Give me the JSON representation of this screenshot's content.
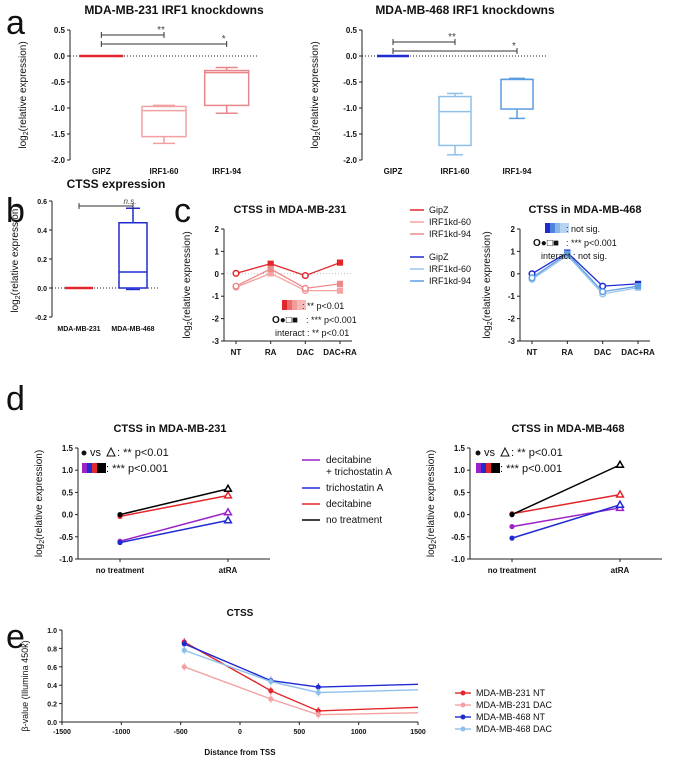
{
  "panel_letters": {
    "a": "a",
    "b": "b",
    "c": "c",
    "d": "d",
    "e": "e"
  },
  "chart_data": [
    {
      "id": "a1",
      "type": "box",
      "title": "MDA-MB-231 IRF1 knockdowns",
      "ylabel": "log2(relative expression)",
      "ylim": [
        -2.0,
        0.5
      ],
      "yticks": [
        "0.5",
        "0.0",
        "-0.5",
        "-1.0",
        "-1.5",
        "-2.0"
      ],
      "categories": [
        "GIPZ",
        "IRF1-60",
        "IRF1-94"
      ],
      "colors": [
        "#e3262b",
        "#f0a0a0",
        "#e9868a"
      ],
      "boxes": [
        {
          "min": 0,
          "q1": 0,
          "median": 0,
          "q3": 0,
          "max": 0
        },
        {
          "min": -1.68,
          "q1": -1.55,
          "median": -1.05,
          "q3": -0.97,
          "max": -0.95
        },
        {
          "min": -1.1,
          "q1": -0.95,
          "median": -0.32,
          "q3": -0.28,
          "max": -0.22
        }
      ],
      "significance": [
        {
          "from": 0,
          "to": 1,
          "label": "**"
        },
        {
          "from": 0,
          "to": 2,
          "label": "*"
        }
      ]
    },
    {
      "id": "a2",
      "type": "box",
      "title": "MDA-MB-468 IRF1 knockdowns",
      "ylabel": "log2(relative expression)",
      "ylim": [
        -2.0,
        0.5
      ],
      "yticks": [
        "0.5",
        "0.0",
        "-0.5",
        "-1.0",
        "-1.5",
        "-2.0"
      ],
      "categories": [
        "GIPZ",
        "IRF1-60",
        "IRF1-94"
      ],
      "colors": [
        "#1f2bd1",
        "#8ec0ea",
        "#5a9ee0"
      ],
      "boxes": [
        {
          "min": 0,
          "q1": 0,
          "median": 0,
          "q3": 0,
          "max": 0
        },
        {
          "min": -1.9,
          "q1": -1.72,
          "median": -1.07,
          "q3": -0.78,
          "max": -0.72
        },
        {
          "min": -1.2,
          "q1": -1.02,
          "median": -0.45,
          "q3": -0.45,
          "max": -0.43
        }
      ],
      "significance": [
        {
          "from": 0,
          "to": 1,
          "label": "**"
        },
        {
          "from": 0,
          "to": 2,
          "label": "*"
        }
      ]
    },
    {
      "id": "b",
      "type": "box",
      "title": "CTSS expression",
      "ylabel": "log2(relative expression)",
      "ylim": [
        -0.2,
        0.6
      ],
      "yticks": [
        "0.6",
        "0.4",
        "0.2",
        "0.0",
        "-0.2"
      ],
      "categories": [
        "MDA-MB-231",
        "MDA-MB-468"
      ],
      "colors": [
        "#e3262b",
        "#1f2bd1"
      ],
      "boxes": [
        {
          "min": 0,
          "q1": 0,
          "median": 0,
          "q3": 0,
          "max": 0
        },
        {
          "min": -0.01,
          "q1": 0.0,
          "median": 0.11,
          "q3": 0.45,
          "max": 0.55
        }
      ],
      "significance": [
        {
          "from": 0,
          "to": 1,
          "label": "n.s."
        }
      ]
    },
    {
      "id": "c1",
      "type": "line",
      "title": "CTSS in MDA-MB-231",
      "ylabel": "log2(relative expression)",
      "ylim": [
        -3,
        2
      ],
      "yticks": [
        "2",
        "1",
        "0",
        "-1",
        "-2",
        "-3"
      ],
      "categories": [
        "NT",
        "RA",
        "DAC",
        "DAC+RA"
      ],
      "series": [
        {
          "name": "GipZ",
          "color": "#e3262b",
          "values": [
            0.02,
            0.45,
            -0.08,
            0.5
          ]
        },
        {
          "name": "IRF1kd-60",
          "color": "#f5a3a3",
          "values": [
            -0.6,
            0.02,
            -0.75,
            -0.75
          ]
        },
        {
          "name": "IRF1kd-94",
          "color": "#ec8a8a",
          "values": [
            -0.55,
            0.22,
            -0.65,
            -0.45
          ]
        }
      ],
      "stats": {
        "line1": ": ** p<0.01",
        "line2": ": *** p<0.001",
        "line3": "interact : ** p<0.01",
        "glyphs": "O●□■"
      }
    },
    {
      "id": "c2",
      "type": "line",
      "title": "CTSS in MDA-MB-468",
      "ylabel": "log2(relative expression)",
      "ylim": [
        -3,
        2
      ],
      "yticks": [
        "2",
        "1",
        "0",
        "-1",
        "-2",
        "-3"
      ],
      "categories": [
        "NT",
        "RA",
        "DAC",
        "DAC+RA"
      ],
      "series": [
        {
          "name": "GipZ",
          "color": "#1f2bd1",
          "values": [
            0.0,
            0.95,
            -0.55,
            -0.45
          ]
        },
        {
          "name": "IRF1kd-60",
          "color": "#9cc6ee",
          "values": [
            -0.25,
            0.82,
            -0.9,
            -0.62
          ]
        },
        {
          "name": "IRF1kd-94",
          "color": "#5c9fe2",
          "values": [
            -0.18,
            0.9,
            -0.8,
            -0.55
          ]
        }
      ],
      "stats": {
        "line1": ": not sig.",
        "line2": ": *** p<0.001",
        "line3": "interact : not sig.",
        "glyphs": "O●□■"
      }
    },
    {
      "id": "d1",
      "type": "line",
      "title": "CTSS in MDA-MB-231",
      "ylabel": "log2(relative expression)",
      "ylim": [
        -1.0,
        1.5
      ],
      "yticks": [
        "1.5",
        "1.0",
        "0.5",
        "0.0",
        "-0.5",
        "-1.0"
      ],
      "categories": [
        "no treatment",
        "atRA"
      ],
      "series": [
        {
          "name": "decitabine + trichostatin A",
          "color": "#9b22c8",
          "values": [
            -0.6,
            0.05
          ]
        },
        {
          "name": "trichostatin A",
          "color": "#1f2bd1",
          "values": [
            -0.63,
            -0.13
          ]
        },
        {
          "name": "decitabine",
          "color": "#e3262b",
          "values": [
            -0.04,
            0.43
          ]
        },
        {
          "name": "no treatment",
          "color": "#000000",
          "values": [
            0.0,
            0.58
          ]
        }
      ],
      "stats": {
        "line1": ": ** p<0.01",
        "line2": ": *** p<0.001",
        "vs": "vs"
      }
    },
    {
      "id": "d2",
      "type": "line",
      "title": "CTSS in MDA-MB-468",
      "ylabel": "log2(relative expression)",
      "ylim": [
        -1.0,
        1.5
      ],
      "yticks": [
        "1.5",
        "1.0",
        "0.5",
        "0.0",
        "-0.5",
        "-1.0"
      ],
      "categories": [
        "no treatment",
        "atRA"
      ],
      "series": [
        {
          "name": "decitabine + trichostatin A",
          "color": "#9b22c8",
          "values": [
            -0.27,
            0.15
          ]
        },
        {
          "name": "trichostatin A",
          "color": "#1f2bd1",
          "values": [
            -0.53,
            0.22
          ]
        },
        {
          "name": "decitabine",
          "color": "#e3262b",
          "values": [
            0.02,
            0.45
          ]
        },
        {
          "name": "no treatment",
          "color": "#000000",
          "values": [
            0.0,
            1.12
          ]
        }
      ],
      "stats": {
        "line1": ": ** p<0.01",
        "line2": ": *** p<0.001",
        "vs": "vs"
      }
    },
    {
      "id": "legend_d",
      "type": "legend",
      "entries": [
        {
          "text": "decitabine",
          "text2": "+ trichostatin A",
          "color": "#9b22c8"
        },
        {
          "text": "trichostatin A",
          "color": "#1f2bd1"
        },
        {
          "text": "decitabine",
          "color": "#e3262b"
        },
        {
          "text": "no treatment",
          "color": "#000000"
        }
      ]
    },
    {
      "id": "e",
      "type": "line",
      "title": "CTSS",
      "xlabel": "Distance from TSS",
      "ylabel": "β-value (Illumina 450k)",
      "xlim": [
        -1500,
        1500
      ],
      "ylim": [
        0.0,
        1.0
      ],
      "xticks": [
        "-1500",
        "-1000",
        "-500",
        "0",
        "500",
        "1000",
        "1500"
      ],
      "yticks": [
        "1.0",
        "0.8",
        "0.6",
        "0.4",
        "0.2",
        "0.0"
      ],
      "x": [
        -470,
        260,
        660,
        1500
      ],
      "series": [
        {
          "name": "MDA-MB-231 NT",
          "color": "#e3262b",
          "values": [
            0.87,
            0.34,
            0.12,
            0.16
          ]
        },
        {
          "name": "MDA-MB-231 DAC",
          "color": "#f4a3a3",
          "values": [
            0.6,
            0.25,
            0.08,
            0.1
          ]
        },
        {
          "name": "MDA-MB-468 NT",
          "color": "#1f2bd1",
          "values": [
            0.85,
            0.45,
            0.38,
            0.41
          ]
        },
        {
          "name": "MDA-MB-468 DAC",
          "color": "#8ec0ea",
          "values": [
            0.78,
            0.44,
            0.32,
            0.35
          ]
        }
      ]
    }
  ]
}
